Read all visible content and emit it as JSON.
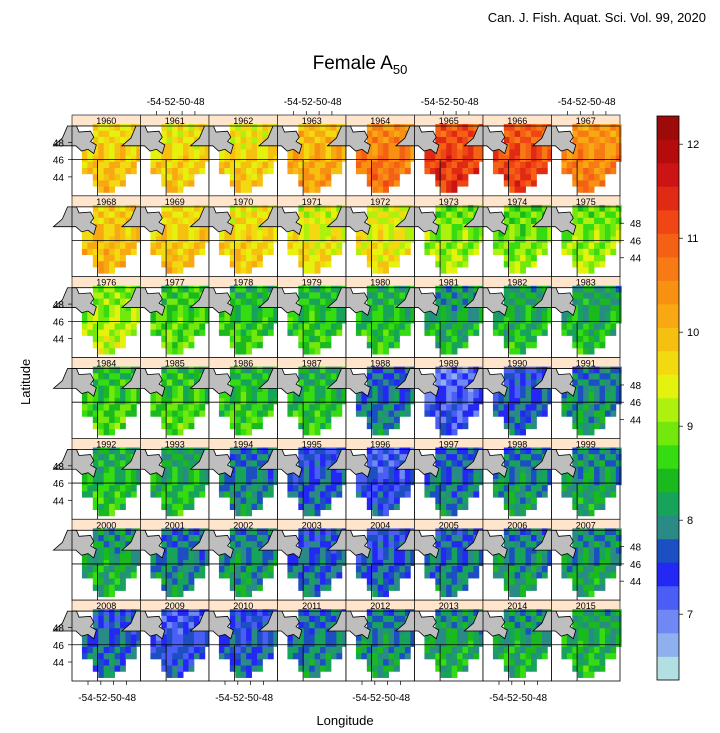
{
  "journal": "Can. J. Fish. Aquat. Sci. Vol. 99, 2020",
  "title_main": "Female A",
  "title_sub": "50",
  "colors": {
    "strip": "#ffe5cc",
    "land": "#bebebe",
    "scale": [
      "#b2dfe2",
      "#8fb0ef",
      "#6f88f3",
      "#4a5ef6",
      "#2428f5",
      "#1c4fc2",
      "#2a8a86",
      "#17a35a",
      "#1ab91e",
      "#36dc12",
      "#72e80c",
      "#aef00e",
      "#e5f20e",
      "#f3da10",
      "#f6c010",
      "#f7a812",
      "#f89112",
      "#f77a14",
      "#f46114",
      "#f04514",
      "#e02a14",
      "#cc1414",
      "#b40c0c",
      "#9c0a0a"
    ]
  },
  "chart_data": {
    "type": "heatmap",
    "title": "Female A50",
    "xlabel": "Longitude",
    "ylabel": "Latitude",
    "x_tick_labels": [
      "-54",
      "-52",
      "-50",
      "-48"
    ],
    "y_tick_labels": [
      "44",
      "46",
      "48"
    ],
    "colorbar": {
      "min": 6.3,
      "max": 12.3,
      "ticks": [
        "7",
        "8",
        "9",
        "10",
        "11",
        "12"
      ]
    },
    "panels": [
      {
        "year": "1960",
        "mean": 9.8
      },
      {
        "year": "1961",
        "mean": 9.7
      },
      {
        "year": "1962",
        "mean": 9.7
      },
      {
        "year": "1963",
        "mean": 10.1
      },
      {
        "year": "1964",
        "mean": 10.6
      },
      {
        "year": "1965",
        "mean": 11.2
      },
      {
        "year": "1966",
        "mean": 11.1
      },
      {
        "year": "1967",
        "mean": 10.5
      },
      {
        "year": "1968",
        "mean": 9.9
      },
      {
        "year": "1969",
        "mean": 9.8
      },
      {
        "year": "1970",
        "mean": 9.7
      },
      {
        "year": "1971",
        "mean": 9.5
      },
      {
        "year": "1972",
        "mean": 9.5
      },
      {
        "year": "1973",
        "mean": 9.0
      },
      {
        "year": "1974",
        "mean": 8.9
      },
      {
        "year": "1975",
        "mean": 9.0
      },
      {
        "year": "1976",
        "mean": 9.1
      },
      {
        "year": "1977",
        "mean": 8.7
      },
      {
        "year": "1978",
        "mean": 8.5
      },
      {
        "year": "1979",
        "mean": 8.5
      },
      {
        "year": "1980",
        "mean": 8.4
      },
      {
        "year": "1981",
        "mean": 8.2
      },
      {
        "year": "1982",
        "mean": 8.3
      },
      {
        "year": "1983",
        "mean": 8.3
      },
      {
        "year": "1984",
        "mean": 8.6
      },
      {
        "year": "1985",
        "mean": 8.6
      },
      {
        "year": "1986",
        "mean": 8.5
      },
      {
        "year": "1987",
        "mean": 8.4
      },
      {
        "year": "1988",
        "mean": 7.8
      },
      {
        "year": "1989",
        "mean": 7.2
      },
      {
        "year": "1990",
        "mean": 7.6
      },
      {
        "year": "1991",
        "mean": 8.0
      },
      {
        "year": "1992",
        "mean": 8.4
      },
      {
        "year": "1993",
        "mean": 8.3
      },
      {
        "year": "1994",
        "mean": 7.9
      },
      {
        "year": "1995",
        "mean": 7.6
      },
      {
        "year": "1996",
        "mean": 7.4
      },
      {
        "year": "1997",
        "mean": 7.8
      },
      {
        "year": "1998",
        "mean": 8.0
      },
      {
        "year": "1999",
        "mean": 8.1
      },
      {
        "year": "2000",
        "mean": 8.2
      },
      {
        "year": "2001",
        "mean": 7.9
      },
      {
        "year": "2002",
        "mean": 8.0
      },
      {
        "year": "2003",
        "mean": 7.7
      },
      {
        "year": "2004",
        "mean": 7.6
      },
      {
        "year": "2005",
        "mean": 7.8
      },
      {
        "year": "2006",
        "mean": 8.0
      },
      {
        "year": "2007",
        "mean": 8.1
      },
      {
        "year": "2008",
        "mean": 7.7
      },
      {
        "year": "2009",
        "mean": 7.4
      },
      {
        "year": "2010",
        "mean": 7.6
      },
      {
        "year": "2011",
        "mean": 7.9
      },
      {
        "year": "2012",
        "mean": 8.0
      },
      {
        "year": "2013",
        "mean": 8.2
      },
      {
        "year": "2014",
        "mean": 8.2
      },
      {
        "year": "2015",
        "mean": 8.3
      }
    ]
  }
}
